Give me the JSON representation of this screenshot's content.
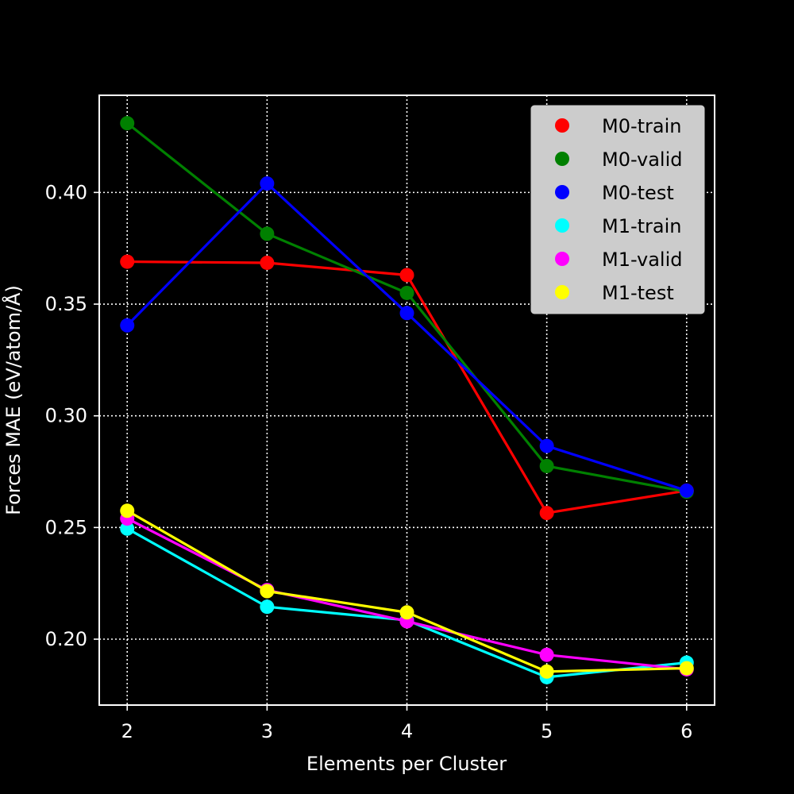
{
  "chart_data": {
    "type": "line",
    "xlabel": "Elements per Cluster",
    "ylabel": "Forces MAE (eV/atom/Å)",
    "x": [
      2,
      3,
      4,
      5,
      6
    ],
    "xlim": [
      1.8,
      6.2
    ],
    "ylim": [
      0.1705,
      0.4435
    ],
    "x_ticks": [
      2,
      3,
      4,
      5,
      6
    ],
    "y_ticks": [
      0.2,
      0.25,
      0.3,
      0.35,
      0.4
    ],
    "y_tick_labels": [
      "0.20",
      "0.25",
      "0.30",
      "0.35",
      "0.40"
    ],
    "grid": true,
    "legend_position": "top-right",
    "series": [
      {
        "name": "M0-train",
        "color": "#ff0000",
        "values": [
          0.369,
          0.3685,
          0.363,
          0.2565,
          0.2665
        ]
      },
      {
        "name": "M0-valid",
        "color": "#008000",
        "values": [
          0.431,
          0.3815,
          0.355,
          0.2775,
          0.266
        ]
      },
      {
        "name": "M0-test",
        "color": "#0000ff",
        "values": [
          0.3405,
          0.404,
          0.346,
          0.2865,
          0.2665
        ]
      },
      {
        "name": "M1-train",
        "color": "#00ffff",
        "values": [
          0.2495,
          0.2145,
          0.2085,
          0.183,
          0.1895
        ]
      },
      {
        "name": "M1-valid",
        "color": "#ff00ff",
        "values": [
          0.254,
          0.222,
          0.208,
          0.193,
          0.1865
        ]
      },
      {
        "name": "M1-test",
        "color": "#ffff00",
        "values": [
          0.2575,
          0.2215,
          0.212,
          0.1855,
          0.187
        ]
      }
    ]
  }
}
